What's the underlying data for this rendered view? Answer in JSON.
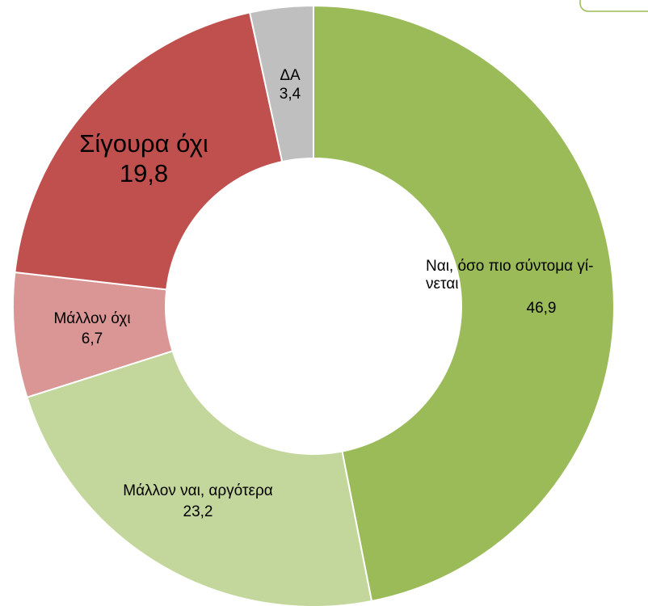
{
  "chart_data": {
    "type": "donut",
    "categories": [
      "Ναι, όσο πιο σύντομα γί-\nνεται",
      "Μάλλον ναι, αργότερα",
      "Μάλλον όχι",
      "Σίγουρα όχι",
      "ΔΑ"
    ],
    "values": [
      46.9,
      23.2,
      6.7,
      19.8,
      3.4
    ],
    "value_labels": [
      "46,9",
      "23,2",
      "6,7",
      "19,8",
      "3,4"
    ],
    "colors": [
      "#9bbb59",
      "#c3d69b",
      "#d99694",
      "#c0504d",
      "#bfbfbf"
    ]
  }
}
